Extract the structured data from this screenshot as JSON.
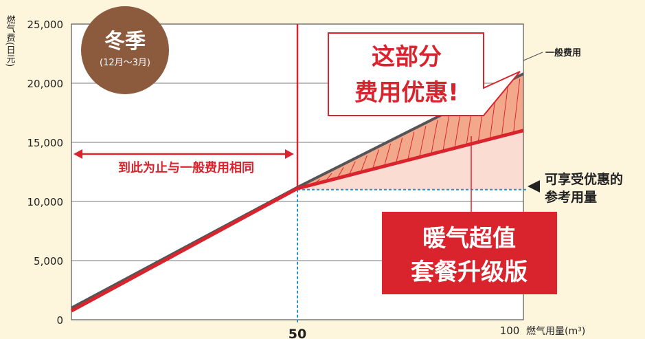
{
  "chart_data": {
    "type": "line",
    "ylabel": "燃气费(日元)",
    "xlabel": "燃气用量(m³)",
    "x_ticks": [
      "50",
      "100"
    ],
    "y_ticks": [
      "0",
      "5,000",
      "10,000",
      "15,000",
      "20,000",
      "25,000"
    ],
    "xlim": [
      0,
      100
    ],
    "ylim": [
      0,
      25000
    ],
    "grid": true,
    "series": [
      {
        "name": "一般费用",
        "color": "#555555",
        "points": [
          [
            0,
            1000
          ],
          [
            50,
            11200
          ],
          [
            100,
            20800
          ]
        ]
      },
      {
        "name": "暖气超值套餐升级版",
        "color": "#d9242e",
        "points": [
          [
            0,
            750
          ],
          [
            50,
            11100
          ],
          [
            100,
            16000
          ]
        ]
      }
    ],
    "reference": {
      "x": 50,
      "y": 11000,
      "color": "#2c8fc4"
    },
    "vertical_marker_x": 50,
    "annotations": {
      "season_title": "冬季",
      "season_sub": "(12月～3月)",
      "same_as_general": "到此为止与一般费用相同",
      "savings_line1": "这部分",
      "savings_line2": "费用优惠!",
      "reference_line1": "可享受优惠的",
      "reference_line2": "参考用量",
      "plan_line1": "暖气超值",
      "plan_line2": "套餐升级版"
    },
    "colors": {
      "background": "#fdf5dc",
      "accent_red": "#d9242e",
      "fill_light": "#fbdcd2",
      "fill_hatch": "#f3a88c",
      "season_badge": "#8c5a3c"
    }
  }
}
